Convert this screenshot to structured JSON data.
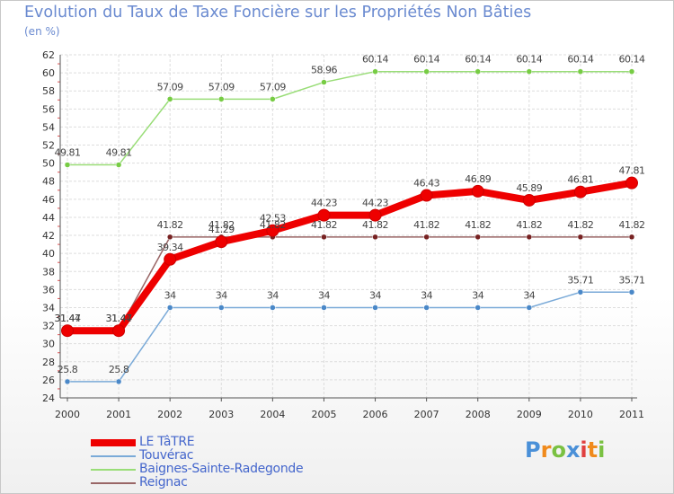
{
  "header": {
    "title": "Evolution du Taux de Taxe Foncière sur les Propriétés Non Bâties",
    "unit": "(en %)"
  },
  "logo": {
    "text": "Proxiti",
    "letters": [
      {
        "ch": "P",
        "color": "#4a90d8"
      },
      {
        "ch": "r",
        "color": "#f08a1c"
      },
      {
        "ch": "o",
        "color": "#7ac142"
      },
      {
        "ch": "x",
        "color": "#4a90d8"
      },
      {
        "ch": "i",
        "color": "#e04040"
      },
      {
        "ch": "t",
        "color": "#f08a1c"
      },
      {
        "ch": "i",
        "color": "#7ac142"
      }
    ]
  },
  "chart_data": {
    "type": "line",
    "title": "Evolution du Taux de Taxe Foncière sur les Propriétés Non Bâties",
    "ylabel": "(en %)",
    "xlabel": "",
    "x": [
      "2000",
      "2001",
      "2002",
      "2003",
      "2004",
      "2005",
      "2006",
      "2007",
      "2008",
      "2009",
      "2010",
      "2011"
    ],
    "ylim": [
      24,
      62
    ],
    "yticks": [
      24,
      26,
      28,
      30,
      32,
      34,
      36,
      38,
      40,
      42,
      44,
      46,
      48,
      50,
      52,
      54,
      56,
      58,
      60,
      62
    ],
    "grid": true,
    "legend_position": "bottom-left",
    "series": [
      {
        "name": "Baignes-Sainte-Radegonde",
        "color": "#99dd77",
        "point_color": "#77cc44",
        "thick": false,
        "values": [
          49.81,
          49.81,
          57.09,
          57.09,
          57.09,
          58.96,
          60.14,
          60.14,
          60.14,
          60.14,
          60.14,
          60.14
        ]
      },
      {
        "name": "Touvérac",
        "color": "#7aaad8",
        "point_color": "#4a88c8",
        "thick": false,
        "values": [
          25.8,
          25.8,
          34,
          34,
          34,
          34,
          34,
          34,
          34,
          34,
          35.71,
          35.71
        ]
      },
      {
        "name": "Reignac",
        "color": "#996666",
        "point_color": "#772222",
        "thick": false,
        "values": [
          31.47,
          31.47,
          41.82,
          41.82,
          41.82,
          41.82,
          41.82,
          41.82,
          41.82,
          41.82,
          41.82,
          41.82
        ]
      },
      {
        "name": "LE TâTRE",
        "color": "#ee0000",
        "point_color": "#ee0000",
        "thick": true,
        "values": [
          31.44,
          31.44,
          39.34,
          41.29,
          42.53,
          44.23,
          44.23,
          46.43,
          46.89,
          45.89,
          46.81,
          47.81
        ]
      }
    ],
    "legend_order": [
      "LE TâTRE",
      "Touvérac",
      "Baignes-Sainte-Radegonde",
      "Reignac"
    ]
  }
}
